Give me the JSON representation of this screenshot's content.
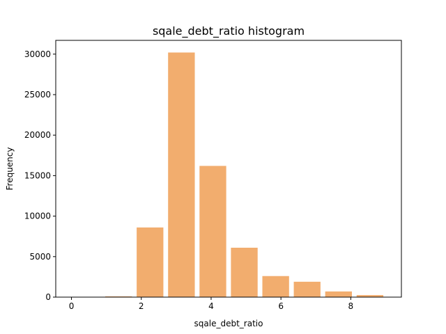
{
  "chart_data": {
    "type": "bar",
    "title": "sqale_debt_ratio histogram",
    "xlabel": "sqale_debt_ratio",
    "ylabel": "Frequency",
    "xlim": [
      -0.45,
      9.45
    ],
    "ylim": [
      0,
      31700
    ],
    "xticks": [
      0,
      2,
      4,
      6,
      8
    ],
    "xtick_labels": [
      "0",
      "2",
      "4",
      "6",
      "8"
    ],
    "yticks": [
      0,
      5000,
      10000,
      15000,
      20000,
      25000,
      30000
    ],
    "ytick_labels": [
      "0",
      "5000",
      "10000",
      "15000",
      "20000",
      "25000",
      "30000"
    ],
    "bins": [
      {
        "x0": 0.0,
        "x1": 0.9,
        "value": 20
      },
      {
        "x0": 0.9,
        "x1": 1.8,
        "value": 90
      },
      {
        "x0": 1.8,
        "x1": 2.7,
        "value": 8600
      },
      {
        "x0": 2.7,
        "x1": 3.6,
        "value": 30200
      },
      {
        "x0": 3.6,
        "x1": 4.5,
        "value": 16200
      },
      {
        "x0": 4.5,
        "x1": 5.4,
        "value": 6100
      },
      {
        "x0": 5.4,
        "x1": 6.3,
        "value": 2600
      },
      {
        "x0": 6.3,
        "x1": 7.2,
        "value": 1900
      },
      {
        "x0": 7.2,
        "x1": 8.1,
        "value": 700
      },
      {
        "x0": 8.1,
        "x1": 9.0,
        "value": 250
      }
    ],
    "bar_fill_ratio": 0.85,
    "bar_color": "#f2ad6e",
    "grid": false,
    "legend": "none"
  }
}
